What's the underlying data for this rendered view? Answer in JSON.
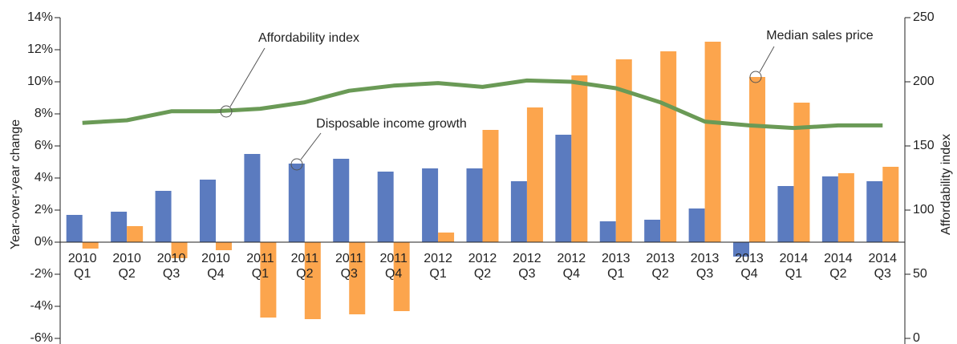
{
  "chart_data": {
    "type": "bar",
    "categories": [
      "2010 Q1",
      "2010 Q2",
      "2010 Q3",
      "2010 Q4",
      "2011 Q1",
      "2011 Q2",
      "2011 Q3",
      "2011 Q4",
      "2012 Q1",
      "2012 Q2",
      "2012 Q3",
      "2012 Q4",
      "2013 Q1",
      "2013 Q2",
      "2013 Q3",
      "2013 Q4",
      "2014 Q1",
      "2014 Q2",
      "2014 Q3"
    ],
    "y_label": "Year-over-year change",
    "y2_label": "Affordability index",
    "ylim": [
      -6,
      14
    ],
    "yticks": [
      {
        "value": -6,
        "label": "-6%"
      },
      {
        "value": -4,
        "label": "-4%"
      },
      {
        "value": -2,
        "label": "-2%"
      },
      {
        "value": 0,
        "label": "0%"
      },
      {
        "value": 2,
        "label": "2%"
      },
      {
        "value": 4,
        "label": "4%"
      },
      {
        "value": 6,
        "label": "6%"
      },
      {
        "value": 8,
        "label": "8%"
      },
      {
        "value": 10,
        "label": "10%"
      },
      {
        "value": 12,
        "label": "12%"
      },
      {
        "value": 14,
        "label": "14%"
      }
    ],
    "y2lim": [
      0,
      250
    ],
    "y2ticks": [
      0,
      50,
      100,
      150,
      200,
      250
    ],
    "grid": false,
    "series": [
      {
        "name": "Disposable income growth",
        "type": "bar",
        "color": "#5b7bbf",
        "values": [
          1.7,
          1.9,
          3.2,
          3.9,
          5.5,
          4.9,
          5.2,
          4.4,
          4.6,
          4.6,
          3.8,
          6.7,
          1.3,
          1.4,
          2.1,
          -0.9,
          3.5,
          4.1,
          3.8
        ]
      },
      {
        "name": "Median sales price",
        "type": "bar",
        "color": "#fca54d",
        "values": [
          -0.4,
          1.0,
          -1.0,
          -0.5,
          -4.7,
          -4.8,
          -4.5,
          -4.3,
          0.6,
          7.0,
          8.4,
          10.4,
          11.4,
          11.9,
          12.5,
          10.3,
          8.7,
          4.3,
          4.7
        ]
      },
      {
        "name": "Affordability index",
        "type": "line",
        "axis": "y2",
        "color": "#6a9a56",
        "values": [
          168,
          170,
          177,
          177,
          179,
          184,
          193,
          197,
          199,
          196,
          201,
          200,
          195,
          184,
          169,
          166,
          164,
          166,
          166
        ]
      }
    ]
  }
}
